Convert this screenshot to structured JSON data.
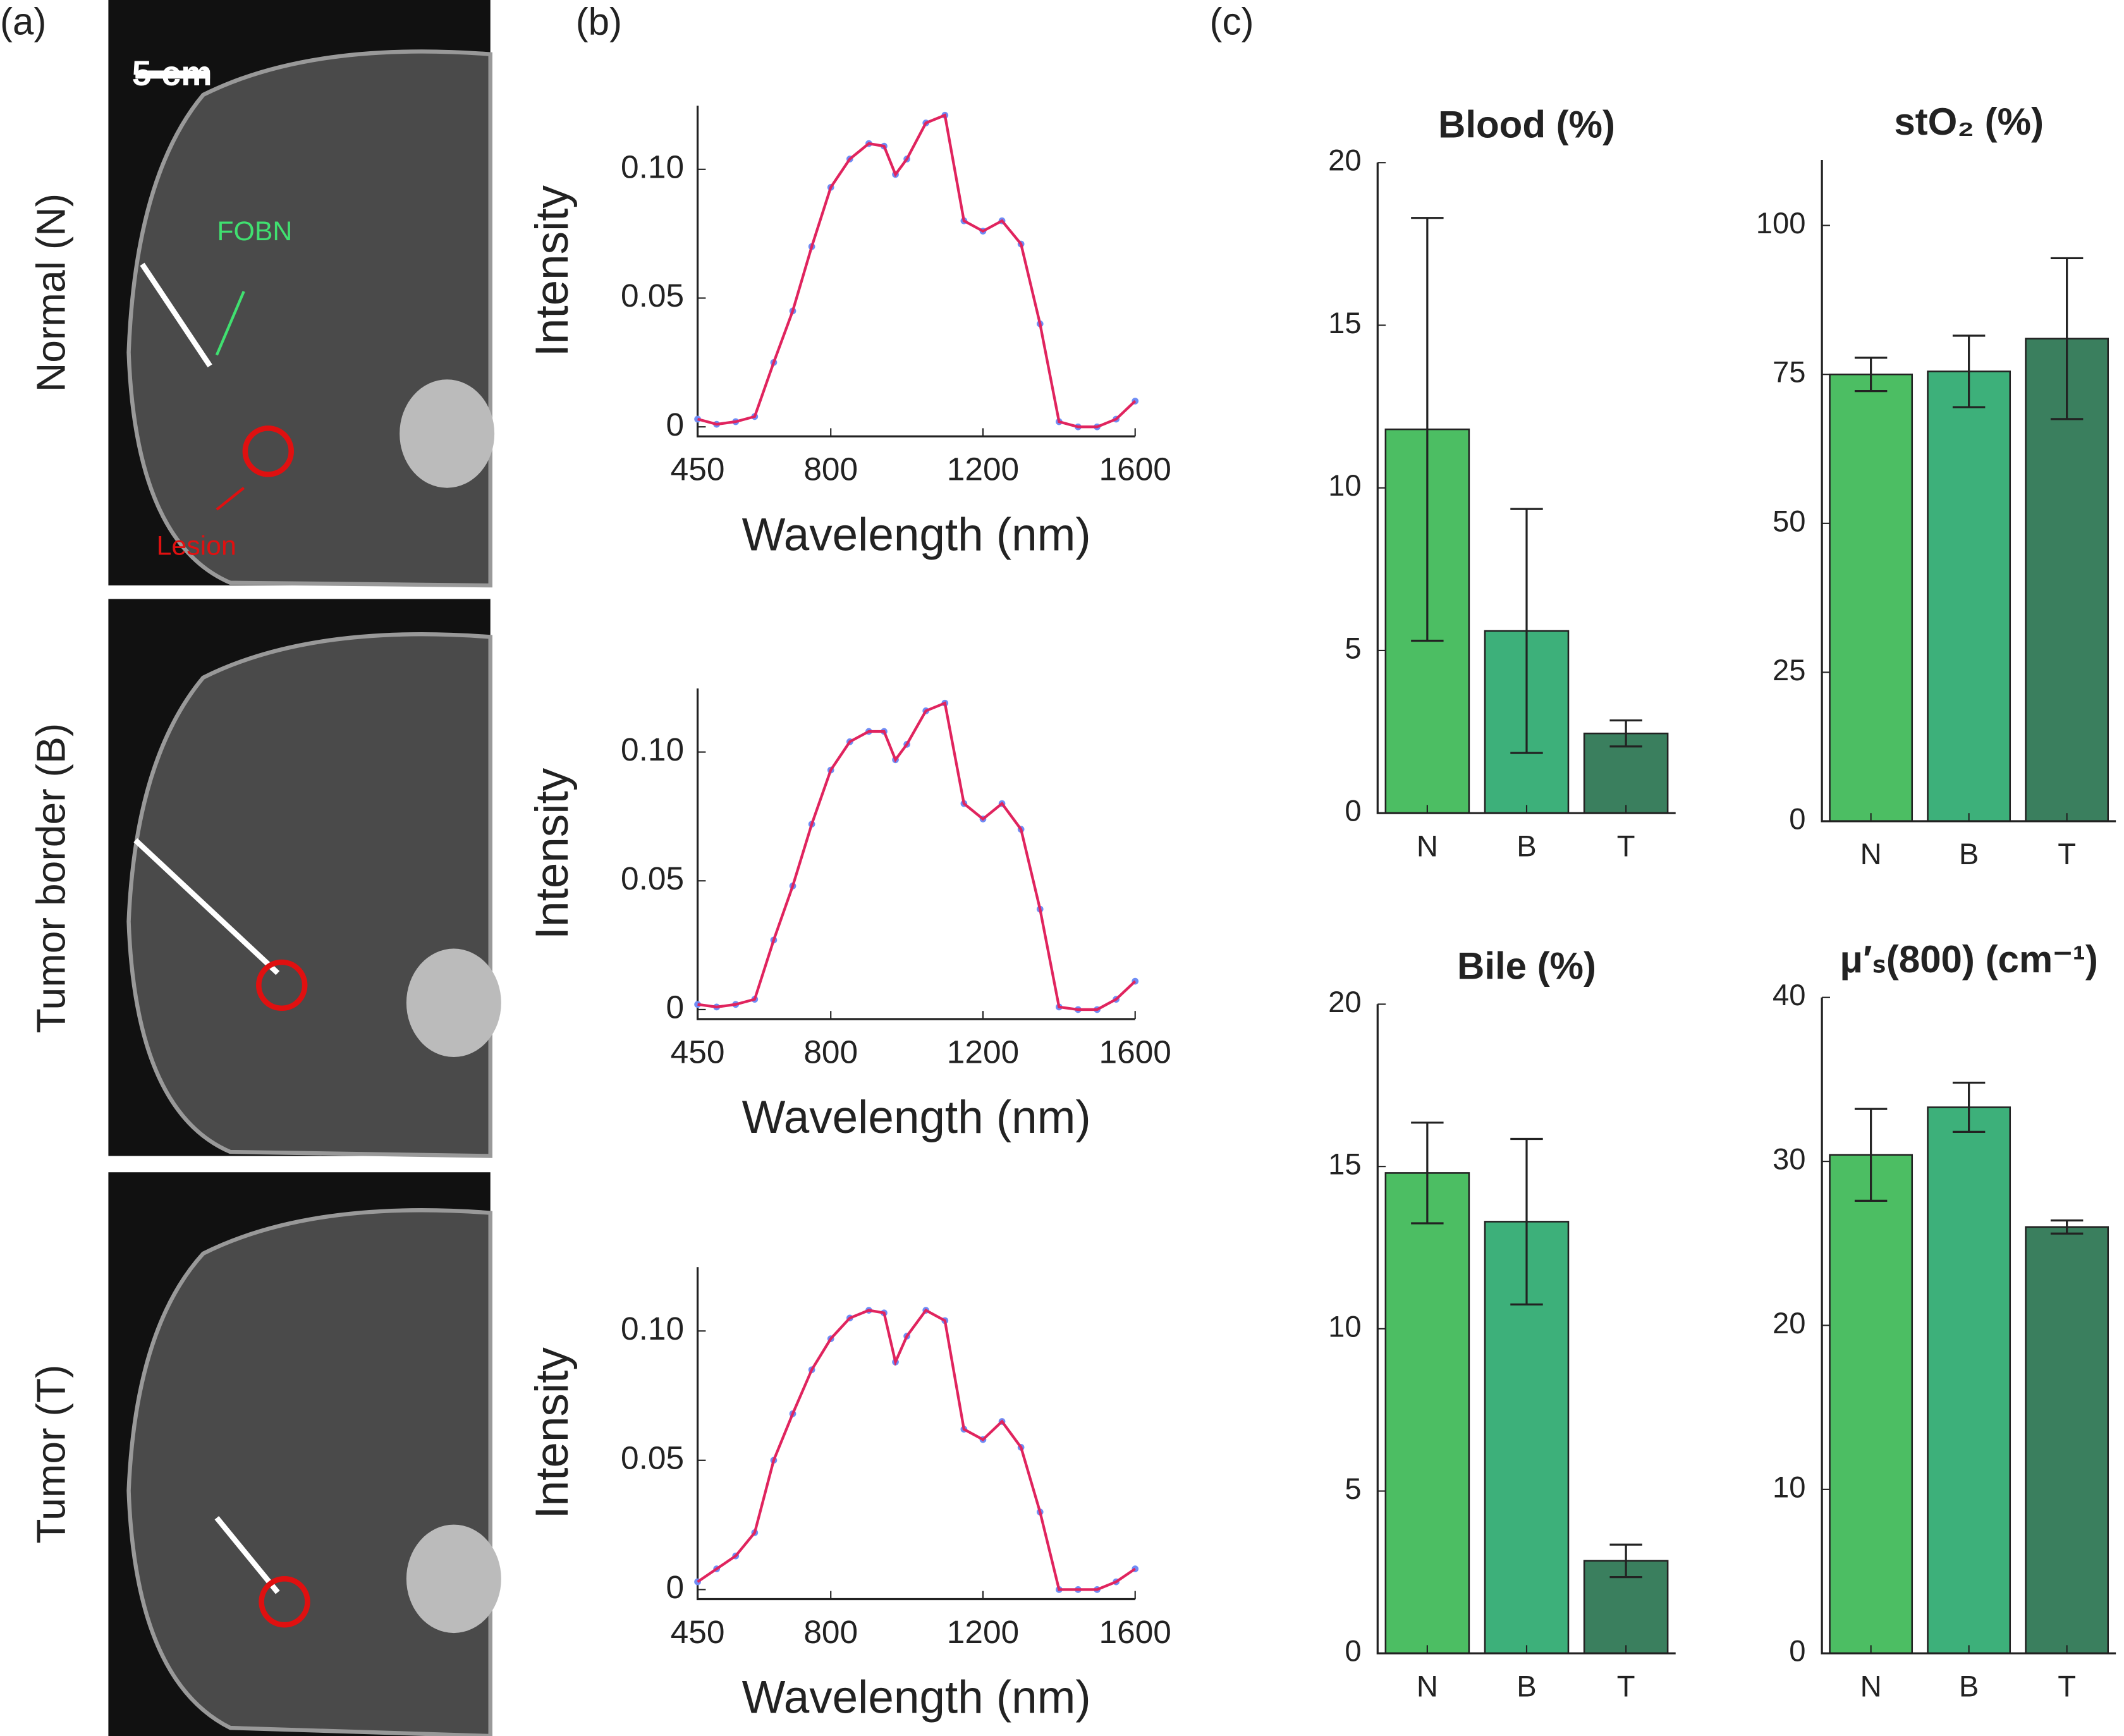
{
  "panel_labels": [
    "(a)",
    "(b)",
    "(c)"
  ],
  "images": [
    {
      "label": "Normal (N)",
      "scale_bar": "5 cm",
      "needle_label": "FOBN",
      "lesion_label": "Lesion"
    },
    {
      "label": "Tumor border (B)"
    },
    {
      "label": "Tumor (T)"
    }
  ],
  "chart_data": [
    {
      "type": "line",
      "xlabel": "Wavelength (nm)",
      "ylabel": "Intensity",
      "x": [
        450,
        500,
        550,
        600,
        650,
        700,
        750,
        800,
        850,
        900,
        940,
        970,
        1000,
        1050,
        1100,
        1150,
        1200,
        1250,
        1300,
        1350,
        1400,
        1450,
        1500,
        1550,
        1600
      ],
      "series": [
        {
          "color": "#e0245e",
          "marker_color": "#6f8cf5",
          "values": [
            0.003,
            0.001,
            0.002,
            0.004,
            0.025,
            0.045,
            0.07,
            0.093,
            0.104,
            0.11,
            0.109,
            0.098,
            0.104,
            0.118,
            0.121,
            0.08,
            0.076,
            0.08,
            0.071,
            0.04,
            0.002,
            0.0,
            0.0,
            0.003,
            0.01
          ]
        }
      ],
      "xlim": [
        450,
        1600
      ],
      "xticks": [
        450,
        800,
        1200,
        1600
      ],
      "ylim": [
        -0.0037,
        0.1247
      ],
      "yticks": [
        0,
        0.05,
        {
          "value": 0.1,
          "label": "0.10"
        }
      ]
    },
    {
      "type": "line",
      "xlabel": "Wavelength (nm)",
      "ylabel": "Intensity",
      "x": [
        450,
        500,
        550,
        600,
        650,
        700,
        750,
        800,
        850,
        900,
        940,
        970,
        1000,
        1050,
        1100,
        1150,
        1200,
        1250,
        1300,
        1350,
        1400,
        1450,
        1500,
        1550,
        1600
      ],
      "series": [
        {
          "color": "#e0245e",
          "marker_color": "#6f8cf5",
          "values": [
            0.002,
            0.001,
            0.002,
            0.004,
            0.027,
            0.048,
            0.072,
            0.093,
            0.104,
            0.108,
            0.108,
            0.097,
            0.103,
            0.116,
            0.119,
            0.08,
            0.074,
            0.08,
            0.07,
            0.039,
            0.001,
            0.0,
            0.0,
            0.004,
            0.011
          ]
        }
      ],
      "xlim": [
        450,
        1600
      ],
      "xticks": [
        450,
        800,
        1200,
        1600
      ],
      "ylim": [
        -0.0037,
        0.1247
      ],
      "yticks": [
        0,
        0.05,
        {
          "value": 0.1,
          "label": "0.10"
        }
      ]
    },
    {
      "type": "line",
      "xlabel": "Wavelength (nm)",
      "ylabel": "Intensity",
      "x": [
        450,
        500,
        550,
        600,
        650,
        700,
        750,
        800,
        850,
        900,
        940,
        970,
        1000,
        1050,
        1100,
        1150,
        1200,
        1250,
        1300,
        1350,
        1400,
        1450,
        1500,
        1550,
        1600
      ],
      "series": [
        {
          "color": "#e0245e",
          "marker_color": "#6f8cf5",
          "values": [
            0.003,
            0.008,
            0.013,
            0.022,
            0.05,
            0.068,
            0.085,
            0.097,
            0.105,
            0.108,
            0.107,
            0.088,
            0.098,
            0.108,
            0.104,
            0.062,
            0.058,
            0.065,
            0.055,
            0.03,
            0.0,
            0.0,
            0.0,
            0.003,
            0.008
          ]
        }
      ],
      "xlim": [
        450,
        1600
      ],
      "xticks": [
        450,
        800,
        1200,
        1600
      ],
      "ylim": [
        -0.0037,
        0.1247
      ],
      "yticks": [
        0,
        0.05,
        {
          "value": 0.1,
          "label": "0.10"
        }
      ]
    },
    {
      "type": "bar",
      "title": "Blood (%)",
      "categories": [
        "N",
        "B",
        "T"
      ],
      "values": [
        11.8,
        5.6,
        2.45
      ],
      "errors": [
        6.5,
        3.75,
        0.4
      ],
      "colors": [
        "#4cbe63",
        "#3db07a",
        "#3a7f5e"
      ],
      "ylim": [
        0,
        20
      ],
      "yticks": [
        0,
        5,
        10,
        15,
        20
      ]
    },
    {
      "type": "bar",
      "title": "stO₂ (%)",
      "categories": [
        "N",
        "B",
        "T"
      ],
      "values": [
        75,
        75.5,
        81
      ],
      "errors": [
        2.8,
        6,
        13.5
      ],
      "colors": [
        "#4cbe63",
        "#3db07a",
        "#3a7f5e"
      ],
      "ylim": [
        0,
        111
      ],
      "yticks": [
        0,
        25,
        50,
        75,
        100
      ]
    },
    {
      "type": "bar",
      "title": "Bile (%)",
      "categories": [
        "N",
        "B",
        "T"
      ],
      "values": [
        14.8,
        13.3,
        2.85
      ],
      "errors": [
        1.55,
        2.55,
        0.5
      ],
      "colors": [
        "#4cbe63",
        "#3db07a",
        "#3a7f5e"
      ],
      "ylim": [
        0,
        20
      ],
      "yticks": [
        0,
        5,
        10,
        15,
        20
      ]
    },
    {
      "type": "bar",
      "title": "μ′ₛ(800) (cm⁻¹)",
      "categories": [
        "N",
        "B",
        "T"
      ],
      "values": [
        30.4,
        33.3,
        26
      ],
      "errors": [
        2.8,
        1.5,
        0.4
      ],
      "colors": [
        "#4cbe63",
        "#3db07a",
        "#3a7f5e"
      ],
      "ylim": [
        0,
        40
      ],
      "yticks": [
        0,
        10,
        20,
        30,
        40
      ]
    }
  ]
}
